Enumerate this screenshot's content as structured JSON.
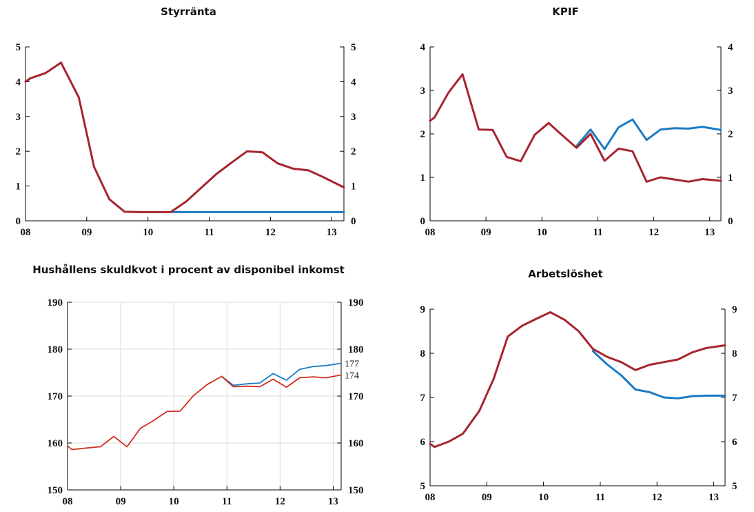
{
  "colors": {
    "series1": "#a6242f",
    "series2": "#1a7bc4",
    "grid": "#d9d9d9",
    "axis": "#000000"
  },
  "chart_data": [
    {
      "type": "line",
      "title": "Styrränta",
      "xticks": [
        "08",
        "09",
        "10",
        "11",
        "12",
        "13"
      ],
      "xlim": [
        2008.0,
        2013.2
      ],
      "ylim": [
        0,
        5
      ],
      "yticks": [
        0,
        1,
        2,
        3,
        4,
        5
      ],
      "grid": false,
      "series": [
        {
          "color": "#1a7bc4",
          "width": 3,
          "x": [
            2010.4,
            2010.6,
            2011.0,
            2011.5,
            2012.0,
            2012.5,
            2013.2
          ],
          "y": [
            0.25,
            0.25,
            0.25,
            0.25,
            0.25,
            0.25,
            0.25
          ]
        },
        {
          "color": "#a6242f",
          "width": 3,
          "x": [
            2008.0,
            2008.08,
            2008.33,
            2008.58,
            2008.87,
            2009.12,
            2009.37,
            2009.62,
            2009.87,
            2010.12,
            2010.37,
            2010.62,
            2010.87,
            2011.12,
            2011.37,
            2011.62,
            2011.87,
            2012.12,
            2012.37,
            2012.62,
            2012.87,
            2013.2
          ],
          "y": [
            4.0,
            4.1,
            4.25,
            4.55,
            3.55,
            1.55,
            0.62,
            0.26,
            0.25,
            0.25,
            0.25,
            0.55,
            0.95,
            1.35,
            1.68,
            2.0,
            1.97,
            1.65,
            1.5,
            1.45,
            1.25,
            0.96
          ]
        }
      ]
    },
    {
      "type": "line",
      "title": "KPIF",
      "xticks": [
        "08",
        "09",
        "10",
        "11",
        "12",
        "13"
      ],
      "xlim": [
        2008.0,
        2013.2
      ],
      "ylim": [
        0,
        4
      ],
      "yticks": [
        0,
        1,
        2,
        3,
        4
      ],
      "grid": false,
      "series": [
        {
          "color": "#1a7bc4",
          "width": 3,
          "x": [
            2010.62,
            2010.87,
            2011.12,
            2011.37,
            2011.62,
            2011.87,
            2012.12,
            2012.37,
            2012.62,
            2012.87,
            2013.2
          ],
          "y": [
            1.72,
            2.1,
            1.65,
            2.15,
            2.33,
            1.86,
            2.1,
            2.13,
            2.12,
            2.16,
            2.09
          ]
        },
        {
          "color": "#a6242f",
          "width": 3,
          "x": [
            2008.0,
            2008.08,
            2008.33,
            2008.58,
            2008.87,
            2009.12,
            2009.37,
            2009.62,
            2009.87,
            2010.12,
            2010.37,
            2010.62,
            2010.87,
            2011.12,
            2011.37,
            2011.62,
            2011.87,
            2012.12,
            2012.37,
            2012.62,
            2012.87,
            2013.2
          ],
          "y": [
            2.3,
            2.38,
            2.95,
            3.37,
            2.1,
            2.09,
            1.47,
            1.37,
            1.98,
            2.25,
            1.96,
            1.68,
            2.0,
            1.38,
            1.66,
            1.6,
            0.9,
            1.0,
            0.95,
            0.9,
            0.96,
            0.92
          ]
        }
      ]
    },
    {
      "type": "line",
      "title": "Hushållens skuldkvot i procent av disponibel inkomst",
      "xticks": [
        "08",
        "09",
        "10",
        "11",
        "12",
        "13"
      ],
      "xlim": [
        2008.0,
        2013.15
      ],
      "ylim": [
        150,
        190
      ],
      "yticks": [
        150,
        160,
        170,
        180,
        190
      ],
      "grid": true,
      "end_labels": [
        {
          "text": "177",
          "value": 177
        },
        {
          "text": "174",
          "value": 174.5
        }
      ],
      "series": [
        {
          "color": "#1a7bc4",
          "width": 1.8,
          "x": [
            2010.9,
            2011.12,
            2011.37,
            2011.62,
            2011.87,
            2012.12,
            2012.37,
            2012.62,
            2012.87,
            2013.15
          ],
          "y": [
            174.2,
            172.3,
            172.6,
            172.8,
            174.8,
            173.4,
            175.7,
            176.3,
            176.5,
            177.0
          ]
        },
        {
          "color": "#d42a1e",
          "width": 1.8,
          "x": [
            2008.0,
            2008.08,
            2008.33,
            2008.62,
            2008.87,
            2009.12,
            2009.37,
            2009.62,
            2009.87,
            2010.12,
            2010.37,
            2010.62,
            2010.9,
            2011.12,
            2011.37,
            2011.62,
            2011.87,
            2012.12,
            2012.37,
            2012.62,
            2012.87,
            2013.15
          ],
          "y": [
            159.4,
            158.6,
            158.9,
            159.2,
            161.4,
            159.2,
            163.1,
            164.8,
            166.7,
            166.8,
            170.1,
            172.4,
            174.2,
            172.0,
            172.1,
            172.0,
            173.6,
            171.9,
            173.9,
            174.1,
            173.9,
            174.5
          ]
        }
      ]
    },
    {
      "type": "line",
      "title": "Arbetslöshet",
      "xticks": [
        "08",
        "09",
        "10",
        "11",
        "12",
        "13"
      ],
      "xlim": [
        2008.0,
        2013.2
      ],
      "ylim": [
        5,
        9
      ],
      "yticks": [
        5,
        6,
        7,
        8,
        9
      ],
      "grid": false,
      "series": [
        {
          "color": "#1a7bc4",
          "width": 3,
          "x": [
            2010.87,
            2011.12,
            2011.37,
            2011.62,
            2011.87,
            2012.12,
            2012.37,
            2012.62,
            2012.87,
            2013.2
          ],
          "y": [
            8.05,
            7.75,
            7.5,
            7.18,
            7.12,
            7.0,
            6.98,
            7.03,
            7.04,
            7.04
          ]
        },
        {
          "color": "#a6242f",
          "width": 3,
          "x": [
            2008.0,
            2008.08,
            2008.33,
            2008.58,
            2008.87,
            2009.12,
            2009.37,
            2009.62,
            2009.87,
            2010.12,
            2010.37,
            2010.62,
            2010.87,
            2011.12,
            2011.37,
            2011.62,
            2011.87,
            2012.12,
            2012.37,
            2012.62,
            2012.87,
            2013.2
          ],
          "y": [
            5.95,
            5.88,
            6.0,
            6.18,
            6.7,
            7.42,
            8.38,
            8.62,
            8.78,
            8.93,
            8.76,
            8.5,
            8.1,
            7.92,
            7.8,
            7.62,
            7.74,
            7.8,
            7.86,
            8.02,
            8.12,
            8.18
          ]
        }
      ]
    }
  ]
}
